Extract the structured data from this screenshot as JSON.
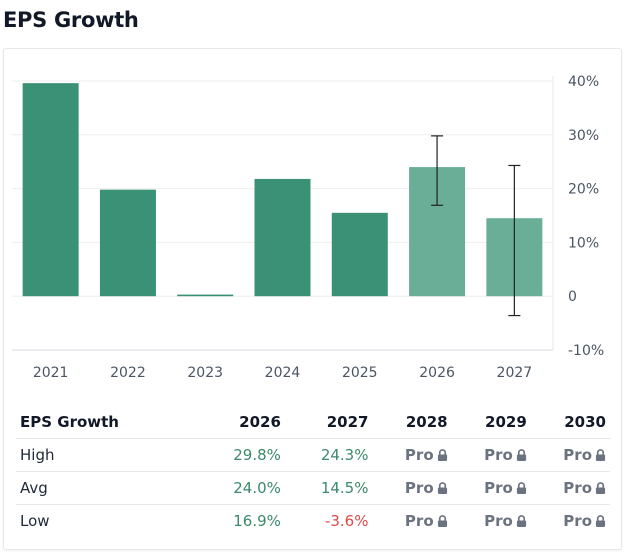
{
  "header": {
    "title": "EPS Growth"
  },
  "colors": {
    "bar_actual": "#3a9176",
    "bar_estimate": "#6aae98",
    "positive_text": "#3b8a6a",
    "negative_text": "#dc4a4a",
    "gridline": "#eeeeee",
    "errorbar": "#222222"
  },
  "chart_data": {
    "type": "bar",
    "title": "EPS Growth",
    "xlabel": "",
    "ylabel": "",
    "categories": [
      "2021",
      "2022",
      "2023",
      "2024",
      "2025",
      "2026",
      "2027"
    ],
    "values": [
      39.6,
      19.8,
      0.3,
      21.8,
      15.5,
      24.0,
      14.5
    ],
    "estimate_flags": [
      false,
      false,
      false,
      false,
      false,
      true,
      true
    ],
    "error_bars": [
      null,
      null,
      null,
      null,
      null,
      {
        "low": 16.9,
        "high": 29.8
      },
      {
        "low": -3.6,
        "high": 24.3
      }
    ],
    "ylim": [
      -10,
      40
    ],
    "yticks": [
      40,
      30,
      20,
      10,
      0,
      -10
    ],
    "ytick_labels": [
      "40%",
      "30%",
      "20%",
      "10%",
      "0",
      "-10%"
    ],
    "y_axis_side": "right",
    "grid": true,
    "legend": "none"
  },
  "table": {
    "header": [
      "EPS Growth",
      "2026",
      "2027",
      "2028",
      "2029",
      "2030"
    ],
    "rows": [
      {
        "label": "High",
        "cells": [
          {
            "text": "29.8%",
            "kind": "pos"
          },
          {
            "text": "24.3%",
            "kind": "pos"
          },
          {
            "text": "Pro",
            "kind": "pro"
          },
          {
            "text": "Pro",
            "kind": "pro"
          },
          {
            "text": "Pro",
            "kind": "pro"
          }
        ]
      },
      {
        "label": "Avg",
        "cells": [
          {
            "text": "24.0%",
            "kind": "pos"
          },
          {
            "text": "14.5%",
            "kind": "pos"
          },
          {
            "text": "Pro",
            "kind": "pro"
          },
          {
            "text": "Pro",
            "kind": "pro"
          },
          {
            "text": "Pro",
            "kind": "pro"
          }
        ]
      },
      {
        "label": "Low",
        "cells": [
          {
            "text": "16.9%",
            "kind": "pos"
          },
          {
            "text": "-3.6%",
            "kind": "neg"
          },
          {
            "text": "Pro",
            "kind": "pro"
          },
          {
            "text": "Pro",
            "kind": "pro"
          },
          {
            "text": "Pro",
            "kind": "pro"
          }
        ]
      }
    ],
    "lock_icon": "lock-icon"
  }
}
